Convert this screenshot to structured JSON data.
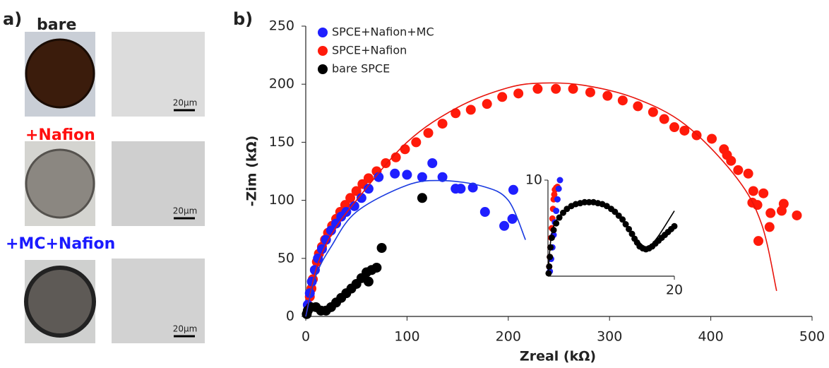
{
  "panel_a": {
    "label": "a)",
    "rows": [
      {
        "title": "bare",
        "scale_bar": "20μm"
      },
      {
        "title": "+Nafion",
        "scale_bar": "20μm"
      },
      {
        "title": "+MC+Nafion",
        "scale_bar": "20μm"
      }
    ]
  },
  "chart_data": [
    {
      "type": "scatter",
      "panel_label": "b)",
      "x_label": "Zreal (kΩ)",
      "y_label": "-Zim (kΩ)",
      "xlim": [
        0,
        500
      ],
      "xticks": [
        0,
        100,
        200,
        300,
        400,
        500
      ],
      "ylim": [
        0,
        250
      ],
      "yticks": [
        0,
        50,
        100,
        150,
        200,
        250
      ],
      "legend": "upper left",
      "series": [
        {
          "name": "SPCE+Nafion+MC",
          "color": "#1f1fff",
          "x": [
            2,
            4,
            6,
            9,
            12,
            16,
            20,
            25,
            30,
            35,
            40,
            48,
            55,
            62,
            72,
            88,
            100,
            115,
            125,
            135,
            148,
            153,
            165,
            177,
            196,
            204,
            205
          ],
          "values": [
            10,
            20,
            30,
            40,
            50,
            58,
            66,
            74,
            80,
            86,
            90,
            95,
            102,
            110,
            120,
            123,
            122,
            120,
            132,
            120,
            110,
            110,
            111,
            90,
            78,
            84,
            109
          ]
        },
        {
          "name": "SPCE+Nafion",
          "color": "#ff1a0a",
          "x": [
            3,
            4,
            5.6,
            7,
            9,
            11,
            13,
            16,
            19,
            22,
            26,
            30,
            34,
            39,
            44,
            50,
            56,
            62,
            70,
            79,
            89,
            98,
            109,
            121,
            135,
            148,
            163,
            179,
            194,
            210,
            229,
            247,
            264,
            281,
            298,
            313,
            328,
            343,
            354,
            364,
            374,
            386,
            401,
            413,
            416,
            420,
            427,
            437,
            442,
            441,
            446,
            452,
            459,
            470,
            472,
            485,
            458,
            447
          ],
          "values": [
            8,
            17,
            24,
            32,
            40,
            47,
            54,
            60,
            66,
            72,
            78,
            84,
            90,
            96,
            102,
            108,
            114,
            119,
            125,
            132,
            137,
            144,
            150,
            158,
            166,
            175,
            178,
            183,
            189,
            192,
            196,
            196,
            196,
            193,
            190,
            186,
            181,
            176,
            170,
            163,
            160,
            156,
            153,
            144,
            139,
            134,
            126,
            123,
            108,
            98,
            96,
            106,
            89,
            91,
            97,
            87,
            77,
            65
          ]
        },
        {
          "name": "bare SPCE",
          "color": "#000000",
          "x": [
            1,
            2,
            5,
            10,
            15,
            20,
            25,
            30,
            35,
            40,
            45,
            50,
            55,
            60,
            62,
            65,
            70,
            75,
            115
          ],
          "values": [
            2,
            5,
            8,
            8,
            5,
            5,
            8,
            12,
            16,
            20,
            24,
            28,
            33,
            38,
            30,
            40,
            42,
            59,
            102
          ]
        }
      ],
      "fits": [
        {
          "color": "#e8140c",
          "x": [
            0,
            10,
            25,
            50,
            100,
            150,
            200,
            235,
            275,
            325,
            375,
            425,
            450,
            465
          ],
          "values": [
            0,
            40,
            70,
            100,
            150,
            180,
            197,
            201,
            199,
            188,
            165,
            120,
            80,
            22
          ]
        },
        {
          "color": "#1a3ae0",
          "x": [
            0,
            10,
            25,
            50,
            100,
            135,
            175,
            200,
            217
          ],
          "values": [
            0,
            35,
            60,
            90,
            113,
            117,
            112,
            100,
            66
          ]
        }
      ]
    },
    {
      "type": "scatter",
      "xlim": [
        0,
        20
      ],
      "xticks": [
        20
      ],
      "ylim": [
        0,
        10
      ],
      "yticks": [
        10
      ],
      "series": [
        {
          "color": "#1f1fff",
          "x": [
            0.3,
            0.5,
            0.7,
            0.9,
            1.1,
            1.3,
            1.5,
            1.7,
            1.9
          ],
          "values": [
            0.5,
            1.8,
            3,
            4.3,
            5.6,
            6.8,
            8,
            9.1,
            10
          ]
        },
        {
          "color": "#ff1a0a",
          "x": [
            0.2,
            0.3,
            0.4,
            0.5,
            0.6,
            0.7,
            0.8,
            0.9,
            1.0,
            1.1,
            1.3,
            1.5
          ],
          "values": [
            1,
            2,
            3,
            4,
            5,
            6,
            7,
            8,
            8.5,
            9,
            9.2,
            9.3
          ]
        },
        {
          "color": "#000000",
          "x": [
            0.1,
            0.2,
            0.3,
            0.4,
            0.6,
            0.9,
            1.3,
            1.8,
            2.4,
            3.0,
            3.7,
            4.4,
            5.1,
            5.8,
            6.5,
            7.2,
            7.9,
            8.6,
            9.3,
            10,
            10.6,
            11.2,
            11.8,
            12.3,
            12.8,
            13.3,
            13.7,
            14.1,
            14.5,
            15,
            15.5,
            16,
            16.5,
            17,
            17.5,
            18,
            18.5,
            19,
            19.5,
            20
          ],
          "values": [
            0.3,
            1,
            2,
            3,
            4,
            4.8,
            5.5,
            6.1,
            6.6,
            7.0,
            7.3,
            7.5,
            7.6,
            7.7,
            7.7,
            7.7,
            7.6,
            7.5,
            7.3,
            7.0,
            6.7,
            6.3,
            5.9,
            5.4,
            4.9,
            4.4,
            3.9,
            3.5,
            3.1,
            2.9,
            2.8,
            2.9,
            3.1,
            3.4,
            3.7,
            4.0,
            4.3,
            4.6,
            4.9,
            5.2
          ]
        }
      ],
      "fits": [
        {
          "color": "#000000",
          "x": [
            0,
            0.5,
            1.5,
            4,
            7.5,
            11,
            13.5,
            15,
            16,
            17.5,
            20
          ],
          "values": [
            0,
            4,
            6,
            7.4,
            7.7,
            6.6,
            4.3,
            3.2,
            3.1,
            4.2,
            6.8
          ]
        }
      ]
    }
  ]
}
